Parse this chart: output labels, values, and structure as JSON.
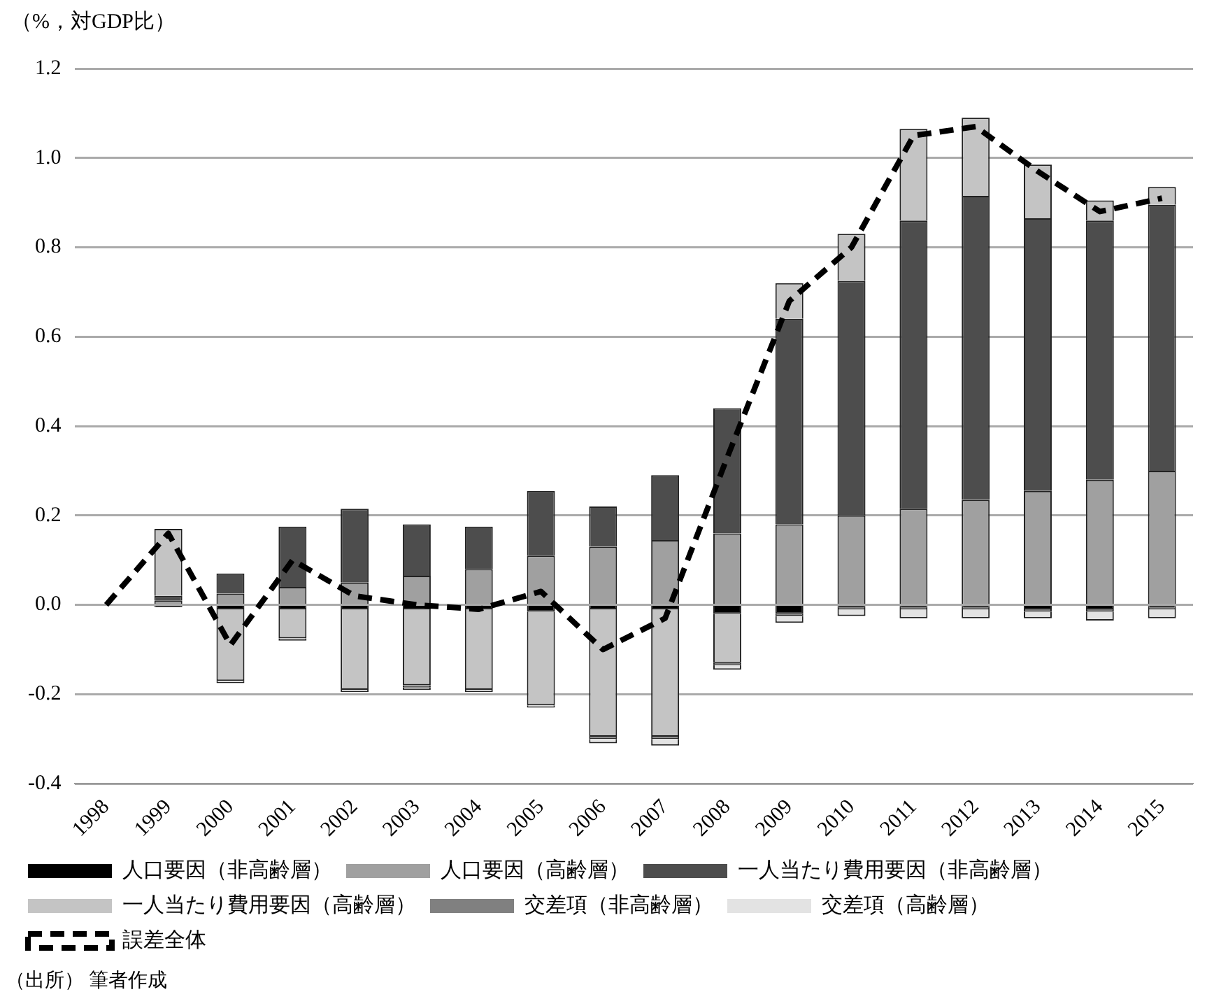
{
  "chart_data": {
    "type": "bar",
    "stacked": true,
    "ylabel": "（%，対GDP比）",
    "categories": [
      "1998",
      "1999",
      "2000",
      "2001",
      "2002",
      "2003",
      "2004",
      "2005",
      "2006",
      "2007",
      "2008",
      "2009",
      "2010",
      "2011",
      "2012",
      "2013",
      "2014",
      "2015"
    ],
    "series": [
      {
        "name": "人口要因（非高齢層）",
        "color": "#000000",
        "values": [
          null,
          -0.005,
          -0.01,
          -0.01,
          -0.01,
          -0.01,
          -0.01,
          -0.015,
          -0.01,
          -0.01,
          -0.02,
          -0.02,
          -0.005,
          -0.005,
          -0.005,
          -0.01,
          -0.01,
          -0.005
        ]
      },
      {
        "name": "人口要因（高齢層）",
        "color": "#a0a0a0",
        "values": [
          null,
          0.01,
          0.025,
          0.04,
          0.05,
          0.065,
          0.08,
          0.11,
          0.13,
          0.145,
          0.16,
          0.18,
          0.2,
          0.215,
          0.235,
          0.255,
          0.28,
          0.3
        ]
      },
      {
        "name": "一人当たり費用要因（非高齢層）",
        "color": "#4d4d4d",
        "values": [
          null,
          0.01,
          0.045,
          0.135,
          0.165,
          0.115,
          0.095,
          0.145,
          0.09,
          0.145,
          0.28,
          0.46,
          0.525,
          0.645,
          0.68,
          0.61,
          0.58,
          0.595
        ]
      },
      {
        "name": "一人当たり費用要因（高齢層）",
        "color": "#c4c4c4",
        "values": [
          null,
          0.15,
          -0.16,
          -0.065,
          -0.18,
          -0.17,
          -0.18,
          -0.21,
          -0.285,
          -0.285,
          -0.11,
          0.08,
          0.105,
          0.205,
          0.175,
          0.12,
          0.045,
          0.04
        ]
      },
      {
        "name": "交差項（非高齢層）",
        "color": "#808080",
        "values": [
          null,
          null,
          null,
          null,
          null,
          -0.005,
          null,
          null,
          -0.005,
          -0.005,
          -0.005,
          -0.005,
          -0.005,
          -0.005,
          -0.005,
          -0.005,
          -0.005,
          -0.005
        ]
      },
      {
        "name": "交差項（高齢層）",
        "color": "#e3e3e3",
        "values": [
          null,
          null,
          -0.005,
          -0.005,
          -0.005,
          -0.005,
          -0.005,
          -0.005,
          -0.01,
          -0.015,
          -0.01,
          -0.015,
          -0.015,
          -0.02,
          -0.02,
          -0.015,
          -0.02,
          -0.02
        ]
      },
      {
        "name": "誤差全体",
        "type": "line",
        "color": "#000000",
        "line_style": "dashed",
        "marker": "none",
        "values": [
          0,
          0.16,
          -0.09,
          0.1,
          0.02,
          0,
          -0.01,
          0.03,
          -0.1,
          -0.03,
          0.33,
          0.68,
          0.8,
          1.05,
          1.07,
          0.97,
          0.88,
          0.91
        ]
      }
    ],
    "ylim": [
      -0.4,
      1.2
    ],
    "yticks": [
      {
        "value": -0.4,
        "label": "-0.4"
      },
      {
        "value": -0.2,
        "label": "-0.2"
      },
      {
        "value": 0,
        "label": "0.0"
      },
      {
        "value": 0.2,
        "label": "0.2"
      },
      {
        "value": 0.4,
        "label": "0.4"
      },
      {
        "value": 0.6,
        "label": "0.6"
      },
      {
        "value": 0.8,
        "label": "0.8"
      },
      {
        "value": 1,
        "label": "1.0"
      },
      {
        "value": 1.2,
        "label": "1.2"
      }
    ],
    "grid": "y",
    "legend": "bottom",
    "annotations": [
      "（出所） 筆者作成"
    ]
  }
}
